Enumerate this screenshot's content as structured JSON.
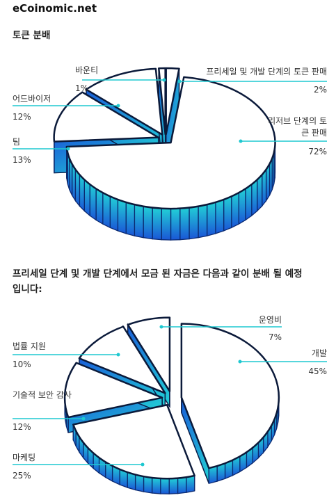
{
  "site": "eCoinomic.net",
  "chart_data": [
    {
      "type": "pie",
      "title": "토큰 분배",
      "categories": [
        "프리세일 및 개발 단계의 토큰 판매",
        "리저브 단계의 토큰 판매",
        "팀",
        "어드바이저",
        "바운티"
      ],
      "values": [
        2,
        72,
        13,
        12,
        1
      ],
      "value_labels": [
        "2%",
        "72%",
        "13%",
        "12%",
        "1%"
      ]
    },
    {
      "type": "pie",
      "title": "프리세일 단계 및 개발 단계에서 모금 된 자금은 다음과 같이 분배 될 예정입니다:",
      "categories": [
        "개발",
        "마케팅",
        "기술적 보안 감사",
        "법률 지원",
        "운영비"
      ],
      "values": [
        45,
        25,
        12,
        10,
        7
      ],
      "value_labels": [
        "45%",
        "25%",
        "12%",
        "10%",
        "7%"
      ]
    }
  ]
}
